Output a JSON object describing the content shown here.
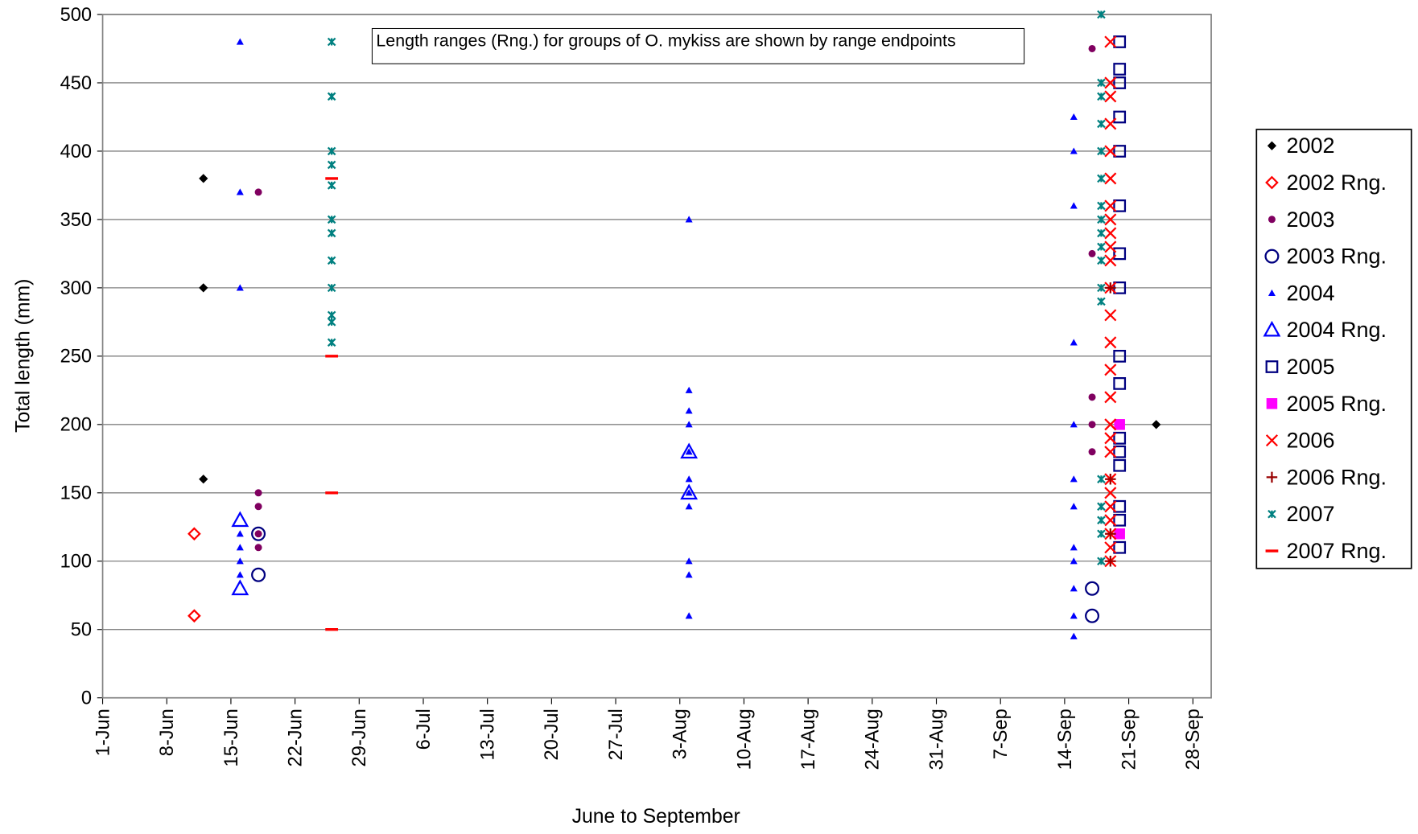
{
  "chart_data": {
    "type": "scatter",
    "x_label": "June to September",
    "y_label": "Total length (mm)",
    "annotation": "Length ranges (Rng.) for groups of O. mykiss are shown by range endpoints",
    "xlim": [
      0,
      121
    ],
    "xticks": [
      {
        "value": 0,
        "label": "1-Jun"
      },
      {
        "value": 7,
        "label": "8-Jun"
      },
      {
        "value": 14,
        "label": "15-Jun"
      },
      {
        "value": 21,
        "label": "22-Jun"
      },
      {
        "value": 28,
        "label": "29-Jun"
      },
      {
        "value": 35,
        "label": "6-Jul"
      },
      {
        "value": 42,
        "label": "13-Jul"
      },
      {
        "value": 49,
        "label": "20-Jul"
      },
      {
        "value": 56,
        "label": "27-Jul"
      },
      {
        "value": 63,
        "label": "3-Aug"
      },
      {
        "value": 70,
        "label": "10-Aug"
      },
      {
        "value": 77,
        "label": "17-Aug"
      },
      {
        "value": 84,
        "label": "24-Aug"
      },
      {
        "value": 91,
        "label": "31-Aug"
      },
      {
        "value": 98,
        "label": "7-Sep"
      },
      {
        "value": 105,
        "label": "14-Sep"
      },
      {
        "value": 112,
        "label": "21-Sep"
      },
      {
        "value": 119,
        "label": "28-Sep"
      }
    ],
    "ylim": [
      0,
      500
    ],
    "yticks": [
      0,
      50,
      100,
      150,
      200,
      250,
      300,
      350,
      400,
      450,
      500
    ],
    "grid": true,
    "legend": "right",
    "series": [
      {
        "name": "2002",
        "color": "#000000",
        "marker": "diamond",
        "x": [
          11,
          11,
          11,
          115
        ],
        "values": [
          380,
          300,
          160,
          200
        ]
      },
      {
        "name": "2002 Rng.",
        "color": "#ff0000",
        "marker": "diamond-open",
        "x": [
          10,
          10
        ],
        "values": [
          120,
          60
        ]
      },
      {
        "name": "2003",
        "color": "#800060",
        "marker": "circle",
        "x": [
          17,
          17,
          17,
          17,
          17,
          108,
          108,
          108,
          108,
          108
        ],
        "values": [
          370,
          150,
          140,
          120,
          110,
          475,
          325,
          220,
          200,
          180
        ]
      },
      {
        "name": "2003 Rng.",
        "color": "#000080",
        "marker": "circle-open",
        "x": [
          17,
          17,
          108,
          108
        ],
        "values": [
          120,
          90,
          80,
          60
        ]
      },
      {
        "name": "2004",
        "color": "#0000ff",
        "marker": "triangle",
        "x": [
          15,
          15,
          15,
          15,
          15,
          15,
          15,
          64,
          64,
          64,
          64,
          64,
          64,
          64,
          64,
          64,
          64,
          64,
          106,
          106,
          106,
          106,
          106,
          106,
          106,
          106,
          106,
          106,
          106,
          106
        ],
        "values": [
          480,
          370,
          300,
          120,
          110,
          100,
          90,
          350,
          225,
          210,
          200,
          180,
          160,
          150,
          140,
          100,
          90,
          60,
          425,
          400,
          360,
          260,
          200,
          160,
          140,
          110,
          100,
          80,
          60,
          45
        ]
      },
      {
        "name": "2004 Rng.",
        "color": "#0000ff",
        "marker": "triangle-open",
        "x": [
          15,
          15,
          64,
          64
        ],
        "values": [
          130,
          80,
          180,
          150
        ]
      },
      {
        "name": "2005",
        "color": "#000080",
        "marker": "square-open",
        "x": [
          111,
          111,
          111,
          111,
          111,
          111,
          111,
          111,
          111,
          111,
          111,
          111,
          111,
          111,
          111,
          111
        ],
        "values": [
          480,
          460,
          450,
          425,
          400,
          360,
          325,
          300,
          250,
          230,
          190,
          180,
          170,
          140,
          130,
          110
        ]
      },
      {
        "name": "2005 Rng.",
        "color": "#ff00ff",
        "marker": "square",
        "x": [
          111,
          111
        ],
        "values": [
          200,
          120
        ]
      },
      {
        "name": "2006",
        "color": "#ff0000",
        "marker": "x",
        "x": [
          110,
          110,
          110,
          110,
          110,
          110,
          110,
          110,
          110,
          110,
          110,
          110,
          110,
          110,
          110,
          110,
          110,
          110,
          110,
          110,
          110,
          110,
          110,
          110,
          110,
          110
        ],
        "values": [
          480,
          450,
          440,
          420,
          400,
          380,
          360,
          350,
          340,
          330,
          320,
          300,
          280,
          260,
          240,
          220,
          200,
          190,
          180,
          160,
          150,
          140,
          130,
          120,
          110,
          100
        ]
      },
      {
        "name": "2006 Rng.",
        "color": "#990000",
        "marker": "plus",
        "x": [
          110,
          110,
          110,
          110
        ],
        "values": [
          300,
          160,
          120,
          100
        ]
      },
      {
        "name": "2007",
        "color": "#008080",
        "marker": "asterisk",
        "x": [
          25,
          25,
          25,
          25,
          25,
          25,
          25,
          25,
          25,
          25,
          25,
          25,
          109,
          109,
          109,
          109,
          109,
          109,
          109,
          109,
          109,
          109,
          109,
          109,
          109,
          109,
          109,
          109,
          109,
          109
        ],
        "values": [
          480,
          440,
          400,
          390,
          375,
          350,
          340,
          320,
          300,
          280,
          275,
          260,
          500,
          450,
          440,
          420,
          400,
          380,
          360,
          350,
          340,
          330,
          320,
          300,
          290,
          160,
          140,
          130,
          120,
          100
        ]
      },
      {
        "name": "2007 Rng.",
        "color": "#ff0000",
        "marker": "dash",
        "x": [
          25,
          25,
          25,
          25
        ],
        "values": [
          380,
          250,
          150,
          50
        ]
      }
    ]
  }
}
